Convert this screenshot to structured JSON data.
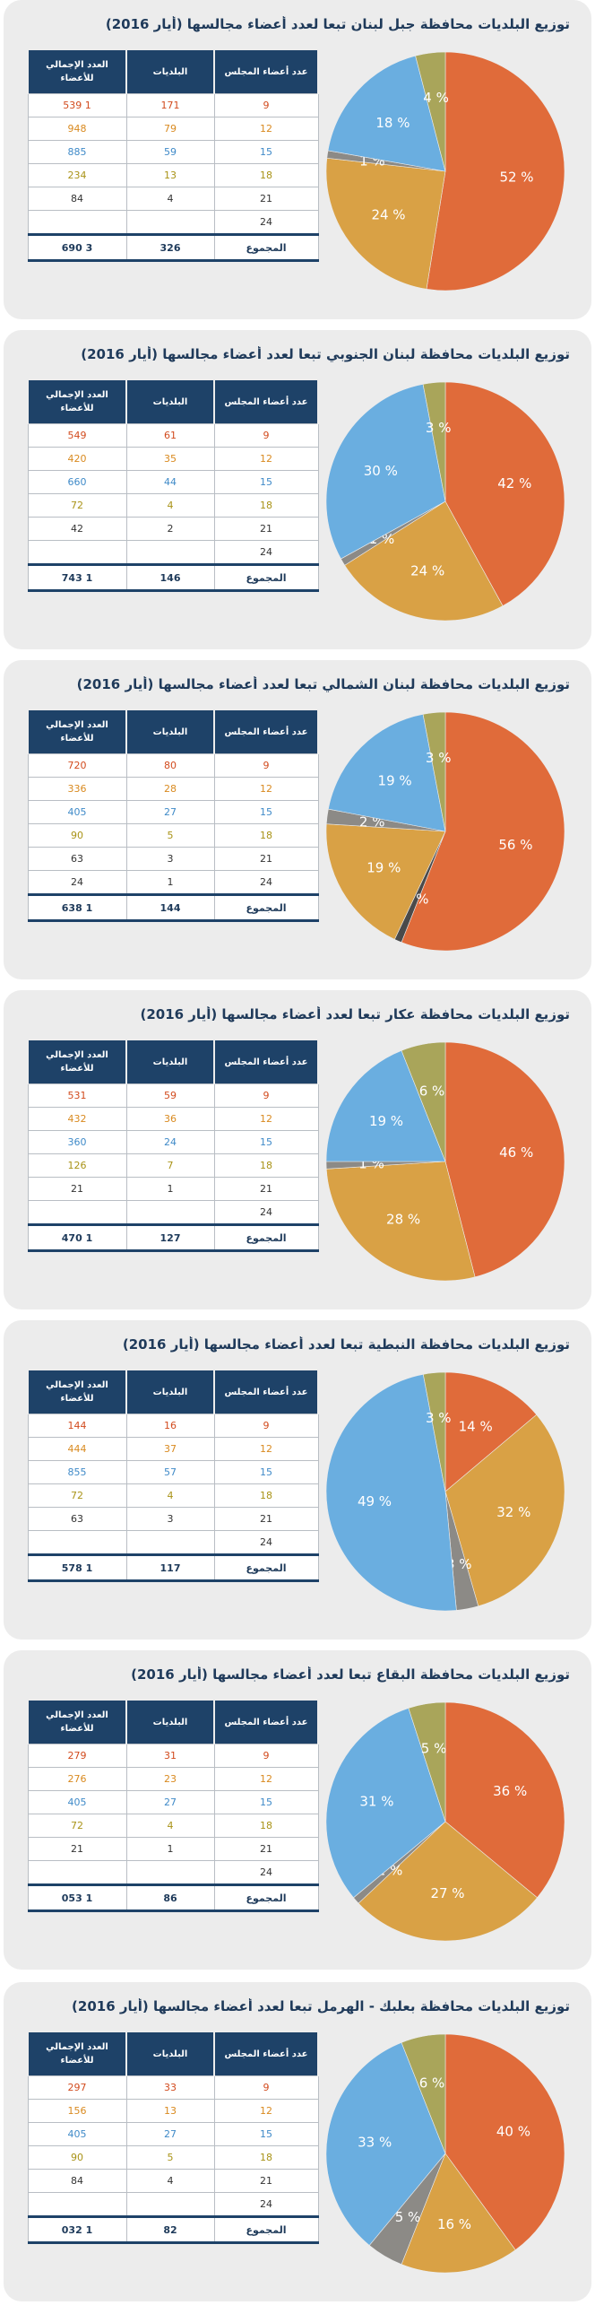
{
  "table_headers": {
    "members": "عدد أعضاء المجلس",
    "municipalities": "البلديات",
    "total_members": "العدد الإجمالي للأعضاء"
  },
  "total_label": "المجموع",
  "member_sizes": [
    "9",
    "12",
    "15",
    "18",
    "21",
    "24"
  ],
  "row_colors": [
    "#d24b1e",
    "#d98a20",
    "#3f8ac8",
    "#a99317",
    "#333333",
    "#333333"
  ],
  "slice_colors": [
    "#e06b3a",
    "#d9a145",
    "#6aaee0",
    "#a9a55a",
    "#8c8a86",
    "#4a4a4a"
  ],
  "chart_data": [
    {
      "type": "pie",
      "title": "توزيع البلديات محافظة جبل لبنان تبعا لعدد أعضاء مجالسها (أيار 2016)",
      "rows": [
        {
          "members": "9",
          "municipalities": "171",
          "total_members": "1 539"
        },
        {
          "members": "12",
          "municipalities": "79",
          "total_members": "948"
        },
        {
          "members": "15",
          "municipalities": "59",
          "total_members": "885"
        },
        {
          "members": "18",
          "municipalities": "13",
          "total_members": "234"
        },
        {
          "members": "21",
          "municipalities": "4",
          "total_members": "84"
        },
        {
          "members": "24",
          "municipalities": "",
          "total_members": ""
        }
      ],
      "total": {
        "municipalities": "326",
        "total_members": "3 690"
      },
      "slices": [
        {
          "members": "9",
          "value": 52,
          "label": "52 %"
        },
        {
          "members": "12",
          "value": 24,
          "label": "24 %"
        },
        {
          "members": "21",
          "value": 1,
          "label": "1 %"
        },
        {
          "members": "15",
          "value": 18,
          "label": "18 %"
        },
        {
          "members": "18",
          "value": 4,
          "label": "4 %"
        }
      ]
    },
    {
      "type": "pie",
      "title": "توزيع البلديات محافظة لبنان الجنوبي تبعا لعدد أعضاء مجالسها (أيار 2016)",
      "rows": [
        {
          "members": "9",
          "municipalities": "61",
          "total_members": "549"
        },
        {
          "members": "12",
          "municipalities": "35",
          "total_members": "420"
        },
        {
          "members": "15",
          "municipalities": "44",
          "total_members": "660"
        },
        {
          "members": "18",
          "municipalities": "4",
          "total_members": "72"
        },
        {
          "members": "21",
          "municipalities": "2",
          "total_members": "42"
        },
        {
          "members": "24",
          "municipalities": "",
          "total_members": ""
        }
      ],
      "total": {
        "municipalities": "146",
        "total_members": "1 743"
      },
      "slices": [
        {
          "members": "9",
          "value": 42,
          "label": "42 %"
        },
        {
          "members": "12",
          "value": 24,
          "label": "24 %"
        },
        {
          "members": "21",
          "value": 1,
          "label": "1 %"
        },
        {
          "members": "15",
          "value": 30,
          "label": "30 %"
        },
        {
          "members": "18",
          "value": 3,
          "label": "3 %"
        }
      ]
    },
    {
      "type": "pie",
      "title": "توزيع البلديات محافظة لبنان الشمالي تبعا لعدد أعضاء مجالسها (أيار 2016)",
      "rows": [
        {
          "members": "9",
          "municipalities": "80",
          "total_members": "720"
        },
        {
          "members": "12",
          "municipalities": "28",
          "total_members": "336"
        },
        {
          "members": "15",
          "municipalities": "27",
          "total_members": "405"
        },
        {
          "members": "18",
          "municipalities": "5",
          "total_members": "90"
        },
        {
          "members": "21",
          "municipalities": "3",
          "total_members": "63"
        },
        {
          "members": "24",
          "municipalities": "1",
          "total_members": "24"
        }
      ],
      "total": {
        "municipalities": "144",
        "total_members": "1 638"
      },
      "slices": [
        {
          "members": "9",
          "value": 56,
          "label": "56 %"
        },
        {
          "members": "24",
          "value": 1,
          "label": "1 %"
        },
        {
          "members": "12",
          "value": 19,
          "label": "19 %"
        },
        {
          "members": "21",
          "value": 2,
          "label": "2 %"
        },
        {
          "members": "15",
          "value": 19,
          "label": "19 %"
        },
        {
          "members": "18",
          "value": 3,
          "label": "3 %"
        }
      ]
    },
    {
      "type": "pie",
      "title": "توزيع البلديات محافظة عكار تبعا لعدد أعضاء مجالسها (أيار 2016)",
      "rows": [
        {
          "members": "9",
          "municipalities": "59",
          "total_members": "531"
        },
        {
          "members": "12",
          "municipalities": "36",
          "total_members": "432"
        },
        {
          "members": "15",
          "municipalities": "24",
          "total_members": "360"
        },
        {
          "members": "18",
          "municipalities": "7",
          "total_members": "126"
        },
        {
          "members": "21",
          "municipalities": "1",
          "total_members": "21"
        },
        {
          "members": "24",
          "municipalities": "",
          "total_members": ""
        }
      ],
      "total": {
        "municipalities": "127",
        "total_members": "1 470"
      },
      "slices": [
        {
          "members": "9",
          "value": 46,
          "label": "46 %"
        },
        {
          "members": "12",
          "value": 28,
          "label": "28 %"
        },
        {
          "members": "21",
          "value": 1,
          "label": "1 %"
        },
        {
          "members": "15",
          "value": 19,
          "label": "19 %"
        },
        {
          "members": "18",
          "value": 6,
          "label": "6 %"
        }
      ]
    },
    {
      "type": "pie",
      "title": "توزيع البلديات محافظة النبطية تبعا لعدد أعضاء مجالسها (أيار 2016)",
      "rows": [
        {
          "members": "9",
          "municipalities": "16",
          "total_members": "144"
        },
        {
          "members": "12",
          "municipalities": "37",
          "total_members": "444"
        },
        {
          "members": "15",
          "municipalities": "57",
          "total_members": "855"
        },
        {
          "members": "18",
          "municipalities": "4",
          "total_members": "72"
        },
        {
          "members": "21",
          "municipalities": "3",
          "total_members": "63"
        },
        {
          "members": "24",
          "municipalities": "",
          "total_members": ""
        }
      ],
      "total": {
        "municipalities": "117",
        "total_members": "1 578"
      },
      "slices": [
        {
          "members": "9",
          "value": 14,
          "label": "14 %"
        },
        {
          "members": "12",
          "value": 32,
          "label": "32 %"
        },
        {
          "members": "21",
          "value": 3,
          "label": "3 %"
        },
        {
          "members": "15",
          "value": 49,
          "label": "49 %"
        },
        {
          "members": "18",
          "value": 3,
          "label": "3 %"
        }
      ]
    },
    {
      "type": "pie",
      "title": "توزيع البلديات محافظة البقاع تبعا لعدد أعضاء مجالسها (أيار 2016)",
      "rows": [
        {
          "members": "9",
          "municipalities": "31",
          "total_members": "279"
        },
        {
          "members": "12",
          "municipalities": "23",
          "total_members": "276"
        },
        {
          "members": "15",
          "municipalities": "27",
          "total_members": "405"
        },
        {
          "members": "18",
          "municipalities": "4",
          "total_members": "72"
        },
        {
          "members": "21",
          "municipalities": "1",
          "total_members": "21"
        },
        {
          "members": "24",
          "municipalities": "",
          "total_members": ""
        }
      ],
      "total": {
        "municipalities": "86",
        "total_members": "1 053"
      },
      "slices": [
        {
          "members": "9",
          "value": 36,
          "label": "36 %"
        },
        {
          "members": "12",
          "value": 27,
          "label": "27 %"
        },
        {
          "members": "21",
          "value": 1,
          "label": "1 %"
        },
        {
          "members": "15",
          "value": 31,
          "label": "31 %"
        },
        {
          "members": "18",
          "value": 5,
          "label": "5 %"
        }
      ]
    },
    {
      "type": "pie",
      "title": "توزيع البلديات محافظة بعلبك - الهرمل تبعا لعدد أعضاء مجالسها (أيار 2016)",
      "rows": [
        {
          "members": "9",
          "municipalities": "33",
          "total_members": "297"
        },
        {
          "members": "12",
          "municipalities": "13",
          "total_members": "156"
        },
        {
          "members": "15",
          "municipalities": "27",
          "total_members": "405"
        },
        {
          "members": "18",
          "municipalities": "5",
          "total_members": "90"
        },
        {
          "members": "21",
          "municipalities": "4",
          "total_members": "84"
        },
        {
          "members": "24",
          "municipalities": "",
          "total_members": ""
        }
      ],
      "total": {
        "municipalities": "82",
        "total_members": "1 032"
      },
      "slices": [
        {
          "members": "9",
          "value": 40,
          "label": "40 %"
        },
        {
          "members": "12",
          "value": 16,
          "label": "16 %"
        },
        {
          "members": "21",
          "value": 5,
          "label": "5 %"
        },
        {
          "members": "15",
          "value": 33,
          "label": "33 %"
        },
        {
          "members": "18",
          "value": 6,
          "label": "6 %"
        }
      ]
    }
  ]
}
